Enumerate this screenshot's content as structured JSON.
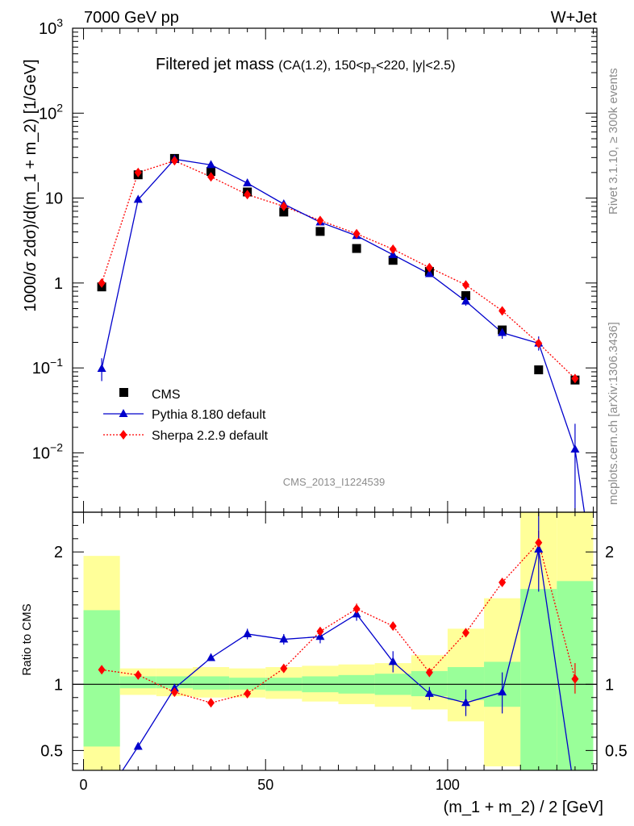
{
  "header": {
    "energy": "7000 GeV pp",
    "process": "W+Jet",
    "title_main": "Filtered jet mass",
    "title_sub": "(CA(1.2), 150<p",
    "title_sub_T": "T",
    "title_sub_end": "<220, |y|<2.5)",
    "analysis_id": "CMS_2013_I1224539"
  },
  "side_labels": {
    "rivet": "Rivet 3.1.10, ≥ 300k events",
    "mcplots": "mcplots.cern.ch [arXiv:1306.3436]"
  },
  "colors": {
    "data": "#000000",
    "pythia": "#0000cc",
    "sherpa": "#ff0000",
    "band_inner": "#99ff99",
    "band_outer": "#ffff99"
  },
  "chart_data": [
    {
      "type": "scatter",
      "yscale": "log",
      "ylabel": "1000/σ 2dσ)/d(m_1 + m_2) [1/GeV]",
      "xlim": [
        -3,
        141
      ],
      "ylim": [
        0.002,
        1000
      ],
      "ytick_labels": [
        {
          "value": 1000,
          "base": "10",
          "exp": "3"
        },
        {
          "value": 100,
          "base": "10",
          "exp": "2"
        },
        {
          "value": 10,
          "base": "10",
          "exp": ""
        },
        {
          "value": 1,
          "base": "1",
          "exp": ""
        },
        {
          "value": 0.1,
          "base": "10",
          "exp": "−1"
        },
        {
          "value": 0.01,
          "base": "10",
          "exp": "−2"
        }
      ],
      "x": [
        5,
        15,
        25,
        35,
        45,
        55,
        65,
        75,
        85,
        95,
        105,
        115,
        125,
        135
      ],
      "legend": [
        {
          "key": "data",
          "label": "CMS"
        },
        {
          "key": "pythia",
          "label": "Pythia 8.180 default"
        },
        {
          "key": "sherpa",
          "label": "Sherpa 2.2.9 default"
        }
      ],
      "series": {
        "data": {
          "name": "CMS",
          "values": [
            0.9,
            18.8,
            29.3,
            20.6,
            11.8,
            6.85,
            4.05,
            2.55,
            1.85,
            1.37,
            0.71,
            0.28,
            0.095,
            0.072
          ]
        },
        "pythia": {
          "name": "Pythia 8.180 default",
          "values": [
            0.098,
            9.6,
            28.7,
            24.6,
            15.0,
            8.5,
            5.2,
            3.6,
            2.15,
            1.28,
            0.61,
            0.26,
            0.195,
            0.011
          ],
          "err_lo": [
            0.07,
            9.2,
            28.2,
            24.1,
            14.5,
            8.2,
            5.0,
            3.48,
            2.07,
            1.21,
            0.54,
            0.22,
            0.16,
            0.002
          ],
          "err_hi": [
            0.13,
            10.0,
            29.2,
            25.1,
            15.5,
            8.8,
            5.4,
            3.72,
            2.23,
            1.35,
            0.68,
            0.31,
            0.235,
            0.022
          ]
        },
        "sherpa": {
          "name": "Sherpa 2.2.9 default",
          "values": [
            1.0,
            20.0,
            27.5,
            17.8,
            11.0,
            8.0,
            5.45,
            3.8,
            2.5,
            1.52,
            0.95,
            0.47,
            0.195,
            0.075
          ],
          "err_lo": [
            0.97,
            19.7,
            27.1,
            17.5,
            10.8,
            7.85,
            5.35,
            3.72,
            2.44,
            1.48,
            0.92,
            0.455,
            0.185,
            0.066
          ],
          "err_hi": [
            1.03,
            20.3,
            27.9,
            18.1,
            11.2,
            8.15,
            5.55,
            3.88,
            2.56,
            1.56,
            0.98,
            0.485,
            0.205,
            0.084
          ]
        }
      }
    },
    {
      "type": "line",
      "ylabel": "Ratio to CMS",
      "xlabel": "(m_1 + m_2) / 2 [GeV]",
      "xlim": [
        -3,
        141
      ],
      "ylim": [
        0.35,
        2.3
      ],
      "xtick_labels": [
        {
          "value": 0,
          "label": "0"
        },
        {
          "value": 50,
          "label": "50"
        },
        {
          "value": 100,
          "label": "100"
        }
      ],
      "ytick_labels": [
        {
          "value": 0.5,
          "label": "0.5"
        },
        {
          "value": 1,
          "label": "1"
        },
        {
          "value": 2,
          "label": "2"
        }
      ],
      "x": [
        5,
        15,
        25,
        35,
        45,
        55,
        65,
        75,
        85,
        95,
        105,
        115,
        125,
        135
      ],
      "bands": {
        "bins": [
          [
            0,
            10
          ],
          [
            10,
            20
          ],
          [
            20,
            30
          ],
          [
            30,
            40
          ],
          [
            40,
            50
          ],
          [
            50,
            60
          ],
          [
            60,
            70
          ],
          [
            70,
            80
          ],
          [
            80,
            90
          ],
          [
            90,
            100
          ],
          [
            100,
            110
          ],
          [
            110,
            120
          ],
          [
            120,
            130
          ],
          [
            130,
            140
          ]
        ],
        "inner_lo": [
          0.53,
          0.97,
          0.97,
          0.96,
          0.96,
          0.95,
          0.94,
          0.93,
          0.92,
          0.91,
          0.88,
          0.83,
          0.35,
          0.35
        ],
        "inner_hi": [
          1.56,
          1.06,
          1.06,
          1.06,
          1.05,
          1.05,
          1.06,
          1.07,
          1.08,
          1.1,
          1.13,
          1.17,
          1.72,
          1.78
        ],
        "outer_lo": [
          0.35,
          0.92,
          0.91,
          0.9,
          0.9,
          0.89,
          0.87,
          0.85,
          0.83,
          0.81,
          0.72,
          0.38,
          0.35,
          0.35
        ],
        "outer_hi": [
          1.97,
          1.12,
          1.12,
          1.13,
          1.12,
          1.13,
          1.14,
          1.15,
          1.16,
          1.22,
          1.42,
          1.65,
          2.3,
          2.3
        ]
      },
      "series": {
        "pythia": {
          "name": "Pythia 8.180 default",
          "values": [
            0.11,
            0.53,
            0.97,
            1.2,
            1.38,
            1.34,
            1.36,
            1.53,
            1.17,
            0.93,
            0.86,
            0.94,
            2.02,
            0.16
          ],
          "err_lo": [
            0.08,
            0.51,
            0.96,
            1.19,
            1.34,
            1.3,
            1.31,
            1.48,
            1.09,
            0.88,
            0.76,
            0.78,
            1.7,
            0.03
          ],
          "err_hi": [
            0.15,
            0.55,
            0.98,
            1.21,
            1.42,
            1.38,
            1.41,
            1.58,
            1.25,
            0.98,
            0.96,
            1.09,
            2.4,
            0.31
          ]
        },
        "sherpa": {
          "name": "Sherpa 2.2.9 default",
          "values": [
            1.11,
            1.07,
            0.94,
            0.86,
            0.93,
            1.12,
            1.4,
            1.57,
            1.44,
            1.09,
            1.39,
            1.77,
            2.07,
            1.04
          ],
          "err_lo": [
            1.09,
            1.05,
            0.93,
            0.85,
            0.92,
            1.11,
            1.38,
            1.53,
            1.42,
            1.07,
            1.37,
            1.74,
            1.98,
            0.93
          ],
          "err_hi": [
            1.13,
            1.09,
            0.95,
            0.87,
            0.94,
            1.13,
            1.42,
            1.61,
            1.46,
            1.11,
            1.41,
            1.8,
            2.16,
            1.16
          ]
        }
      }
    }
  ]
}
